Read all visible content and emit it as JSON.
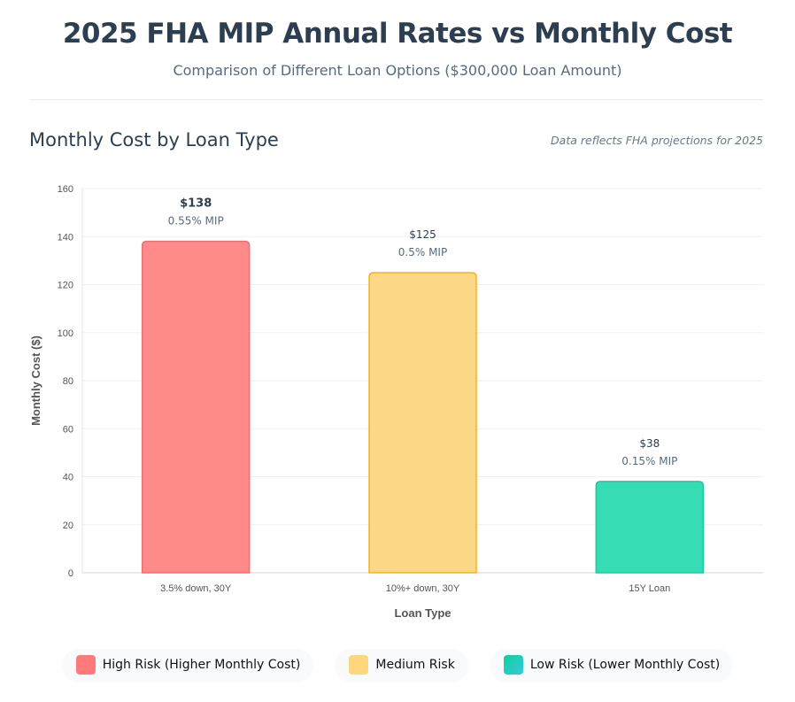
{
  "header": {
    "title": "2025 FHA MIP Annual Rates vs Monthly Cost",
    "subtitle": "Comparison of Different Loan Options ($300,000 Loan Amount)"
  },
  "section": {
    "title": "Monthly Cost by Loan Type",
    "note": "Data reflects FHA projections for 2025"
  },
  "chart_data": {
    "type": "bar",
    "categories": [
      "3.5% down, 30Y",
      "10%+ down, 30Y",
      "15Y Loan"
    ],
    "values": [
      138,
      125,
      38
    ],
    "value_labels": [
      "$138",
      "$125",
      "$38"
    ],
    "mip_labels": [
      "0.55% MIP",
      "0.5% MIP",
      "0.15% MIP"
    ],
    "colors": [
      "#ff8a8a",
      "#fdd886",
      "#36dcb4"
    ],
    "border_colors": [
      "#f26d6d",
      "#f5b21e",
      "#1ec99c"
    ],
    "xlabel": "Loan Type",
    "ylabel": "Monthly Cost ($)",
    "ylim": [
      0,
      160
    ],
    "yticks": [
      "0",
      "20",
      "40",
      "60",
      "80",
      "100",
      "120",
      "140",
      "160"
    ],
    "grid": true
  },
  "legend": [
    {
      "label": "High Risk (Higher Monthly Cost)",
      "color": "#ff7b7b"
    },
    {
      "label": "Medium Risk",
      "color": "#fdd67e"
    },
    {
      "label": "Low Risk (Lower Monthly Cost)",
      "color": "#22d0b0"
    }
  ]
}
